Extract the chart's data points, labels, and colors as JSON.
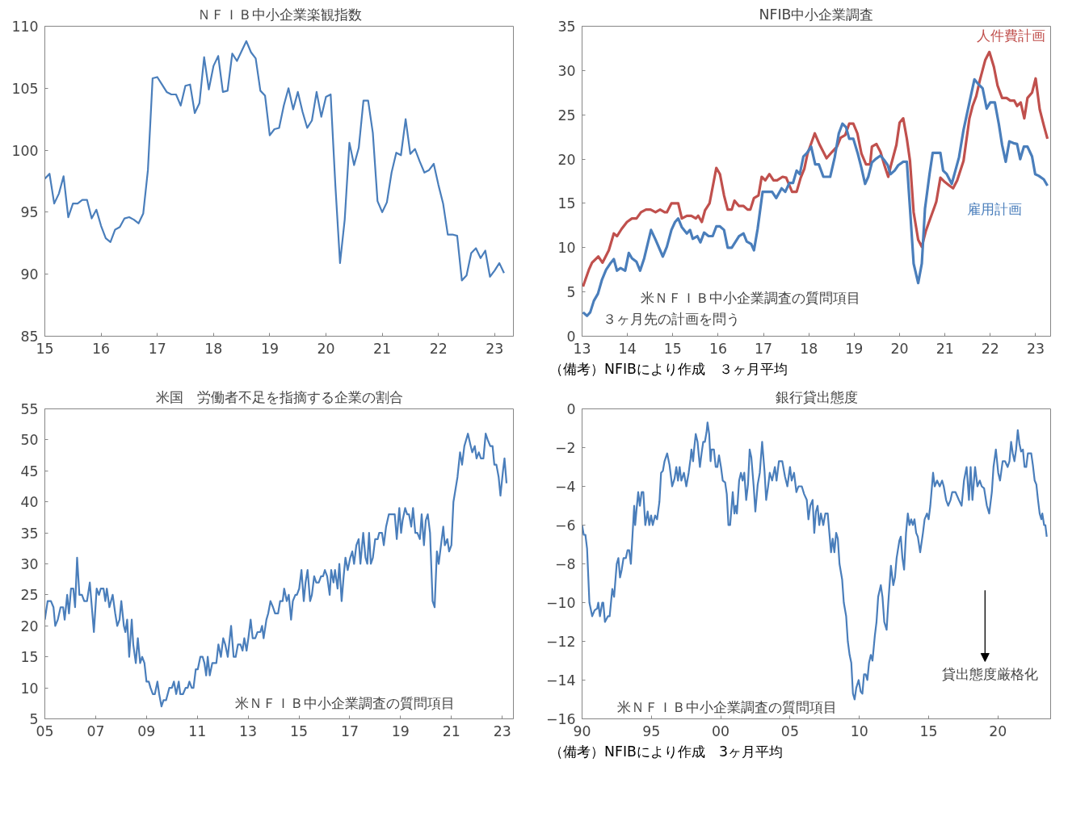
{
  "chart_data": [
    {
      "type": "line",
      "title": "ＮＦＩＢ中小企業楽観指数",
      "xlim": [
        "2015-01",
        "2023-05"
      ],
      "ylim": [
        85,
        110
      ],
      "xticks": [
        {
          "value": "2015-01",
          "label": "15"
        },
        {
          "value": "2016-01",
          "label": "16"
        },
        {
          "value": "2017-01",
          "label": "17"
        },
        {
          "value": "2018-01",
          "label": "18"
        },
        {
          "value": "2019-01",
          "label": "19"
        },
        {
          "value": "2020-01",
          "label": "20"
        },
        {
          "value": "2021-01",
          "label": "21"
        },
        {
          "value": "2022-01",
          "label": "22"
        },
        {
          "value": "2023-01",
          "label": "23"
        }
      ],
      "yticks": [
        85,
        90,
        95,
        100,
        105,
        110
      ],
      "x": [
        "2015-01",
        "2015-02",
        "2015-03",
        "2015-04",
        "2015-05",
        "2015-06",
        "2015-07",
        "2015-08",
        "2015-09",
        "2015-10",
        "2015-11",
        "2015-12",
        "2016-01",
        "2016-02",
        "2016-03",
        "2016-04",
        "2016-05",
        "2016-06",
        "2016-07",
        "2016-08",
        "2016-09",
        "2016-10",
        "2016-11",
        "2016-12",
        "2017-01",
        "2017-02",
        "2017-03",
        "2017-04",
        "2017-05",
        "2017-06",
        "2017-07",
        "2017-08",
        "2017-09",
        "2017-10",
        "2017-11",
        "2017-12",
        "2018-01",
        "2018-02",
        "2018-03",
        "2018-04",
        "2018-05",
        "2018-06",
        "2018-07",
        "2018-08",
        "2018-09",
        "2018-10",
        "2018-11",
        "2018-12",
        "2019-01",
        "2019-02",
        "2019-03",
        "2019-04",
        "2019-05",
        "2019-06",
        "2019-07",
        "2019-08",
        "2019-09",
        "2019-10",
        "2019-11",
        "2019-12",
        "2020-01",
        "2020-02",
        "2020-03",
        "2020-04",
        "2020-05",
        "2020-06",
        "2020-07",
        "2020-08",
        "2020-09",
        "2020-10",
        "2020-11",
        "2020-12",
        "2021-01",
        "2021-02",
        "2021-03",
        "2021-04",
        "2021-05",
        "2021-06",
        "2021-07",
        "2021-08",
        "2021-09",
        "2021-10",
        "2021-11",
        "2021-12",
        "2022-01",
        "2022-02",
        "2022-03",
        "2022-04",
        "2022-05",
        "2022-06",
        "2022-07",
        "2022-08",
        "2022-09",
        "2022-10",
        "2022-11",
        "2022-12",
        "2023-01",
        "2023-02",
        "2023-03"
      ],
      "series": [
        {
          "color": "#4a7ebb",
          "values": [
            97.7,
            98.1,
            95.7,
            96.5,
            97.9,
            94.6,
            95.7,
            95.7,
            96.0,
            96.0,
            94.5,
            95.2,
            93.9,
            92.9,
            92.6,
            93.6,
            93.8,
            94.5,
            94.6,
            94.4,
            94.1,
            94.9,
            98.4,
            105.8,
            105.9,
            105.3,
            104.7,
            104.5,
            104.5,
            103.6,
            105.2,
            105.3,
            103.0,
            103.8,
            107.5,
            104.9,
            106.8,
            107.6,
            104.7,
            104.8,
            107.8,
            107.2,
            108.0,
            108.8,
            107.9,
            107.4,
            104.8,
            104.4,
            101.2,
            101.7,
            101.8,
            103.6,
            105.0,
            103.3,
            104.7,
            103.1,
            101.8,
            102.4,
            104.7,
            102.7,
            104.3,
            104.5,
            97.2,
            90.9,
            94.4,
            100.6,
            98.8,
            100.2,
            104.0,
            104.0,
            101.4,
            95.9,
            95.0,
            95.8,
            98.2,
            99.8,
            99.6,
            102.5,
            99.7,
            100.1,
            99.1,
            98.2,
            98.4,
            98.9,
            97.2,
            95.7,
            93.2,
            93.2,
            93.1,
            89.5,
            89.9,
            91.7,
            92.1,
            91.3,
            91.9,
            89.8,
            90.3,
            90.9,
            90.1
          ]
        }
      ]
    },
    {
      "type": "line",
      "title": "NFIB中小企業調査",
      "xlim": [
        2013,
        2023.33
      ],
      "ylim": [
        0,
        35
      ],
      "xticks": [
        {
          "value": 2013,
          "label": "13"
        },
        {
          "value": 2014,
          "label": "14"
        },
        {
          "value": 2015,
          "label": "15"
        },
        {
          "value": 2016,
          "label": "16"
        },
        {
          "value": 2017,
          "label": "17"
        },
        {
          "value": 2018,
          "label": "18"
        },
        {
          "value": 2019,
          "label": "19"
        },
        {
          "value": 2020,
          "label": "20"
        },
        {
          "value": 2021,
          "label": "21"
        },
        {
          "value": 2022,
          "label": "22"
        },
        {
          "value": 2023,
          "label": "23"
        }
      ],
      "yticks": [
        0,
        5,
        10,
        15,
        20,
        25,
        30,
        35
      ],
      "annotations": [
        "米ＮＦＩＢ中小企業調査の質問項目",
        "３ヶ月先の計画を問う",
        "（備考）NFIBにより作成　３ヶ月平均"
      ],
      "series": [
        {
          "name": "人件費計画",
          "color": "#c0504d",
          "x": [
            2013.02,
            2013.15,
            2013.22,
            2013.36,
            2013.45,
            2013.59,
            2013.7,
            2013.77,
            2013.87,
            2013.99,
            2014.1,
            2014.2,
            2014.3,
            2014.41,
            2014.51,
            2014.62,
            2014.72,
            2014.82,
            2014.87,
            2014.97,
            2015.12,
            2015.2,
            2015.31,
            2015.41,
            2015.51,
            2015.56,
            2015.64,
            2015.71,
            2015.81,
            2015.96,
            2016.04,
            2016.13,
            2016.21,
            2016.3,
            2016.36,
            2016.46,
            2016.56,
            2016.65,
            2016.71,
            2016.79,
            2016.89,
            2016.96,
            2017.04,
            2017.13,
            2017.22,
            2017.3,
            2017.42,
            2017.5,
            2017.63,
            2017.73,
            2017.82,
            2017.9,
            2017.97,
            2018.13,
            2018.24,
            2018.39,
            2018.51,
            2018.62,
            2018.7,
            2018.8,
            2018.89,
            2018.98,
            2019.07,
            2019.16,
            2019.26,
            2019.35,
            2019.39,
            2019.49,
            2019.58,
            2019.66,
            2019.75,
            2019.81,
            2019.93,
            2020.0,
            2020.08,
            2020.16,
            2020.23,
            2020.31,
            2020.41,
            2020.49,
            2020.58,
            2020.67,
            2020.77,
            2020.81,
            2020.9,
            2021.0,
            2021.1,
            2021.18,
            2021.27,
            2021.41,
            2021.54,
            2021.61,
            2021.69,
            2021.77,
            2021.89,
            2021.98,
            2022.08,
            2022.16,
            2022.26,
            2022.36,
            2022.44,
            2022.53,
            2022.59,
            2022.67,
            2022.75,
            2022.82,
            2022.92,
            2023.0,
            2023.09,
            2023.18,
            2023.26
          ],
          "values": [
            5.6,
            7.5,
            8.3,
            9.0,
            8.3,
            9.7,
            11.6,
            11.3,
            12.1,
            12.9,
            13.3,
            13.3,
            14.0,
            14.3,
            14.3,
            14.0,
            14.3,
            14.0,
            14.0,
            15.0,
            15.0,
            13.3,
            13.6,
            13.6,
            13.3,
            13.6,
            12.9,
            14.2,
            15.0,
            19.0,
            18.3,
            15.9,
            14.3,
            14.3,
            15.3,
            14.7,
            14.7,
            14.3,
            14.3,
            15.6,
            15.9,
            18.0,
            17.6,
            18.3,
            17.6,
            17.6,
            18.0,
            17.9,
            16.3,
            16.3,
            17.9,
            18.9,
            20.6,
            22.9,
            21.6,
            20.1,
            20.8,
            21.4,
            22.4,
            22.7,
            24.0,
            24.0,
            22.9,
            20.6,
            19.4,
            19.4,
            21.4,
            21.7,
            20.8,
            19.4,
            18.0,
            19.3,
            21.6,
            24.1,
            24.6,
            22.3,
            19.8,
            14.0,
            10.9,
            10.1,
            11.9,
            13.2,
            14.6,
            15.2,
            17.9,
            17.4,
            17.0,
            16.7,
            17.6,
            19.8,
            24.6,
            26.0,
            27.1,
            28.9,
            31.2,
            32.1,
            30.4,
            28.3,
            26.9,
            26.9,
            26.6,
            26.6,
            26.0,
            26.4,
            24.6,
            26.9,
            27.5,
            29.1,
            25.6,
            23.8,
            22.3
          ]
        },
        {
          "name": "雇用計画",
          "color": "#4a7ebb",
          "x": [
            2013.02,
            2013.11,
            2013.18,
            2013.26,
            2013.35,
            2013.44,
            2013.53,
            2013.62,
            2013.7,
            2013.77,
            2013.85,
            2013.95,
            2014.03,
            2014.1,
            2014.2,
            2014.28,
            2014.37,
            2014.52,
            2014.62,
            2014.78,
            2014.87,
            2014.97,
            2015.05,
            2015.12,
            2015.2,
            2015.31,
            2015.38,
            2015.44,
            2015.54,
            2015.61,
            2015.69,
            2015.79,
            2015.88,
            2015.96,
            2016.04,
            2016.13,
            2016.21,
            2016.3,
            2016.46,
            2016.56,
            2016.63,
            2016.73,
            2016.79,
            2016.87,
            2016.98,
            2017.05,
            2017.19,
            2017.28,
            2017.4,
            2017.48,
            2017.57,
            2017.65,
            2017.73,
            2017.8,
            2017.88,
            2017.96,
            2018.05,
            2018.14,
            2018.22,
            2018.32,
            2018.47,
            2018.57,
            2018.66,
            2018.74,
            2018.82,
            2018.89,
            2018.98,
            2019.08,
            2019.16,
            2019.24,
            2019.31,
            2019.39,
            2019.47,
            2019.58,
            2019.66,
            2019.74,
            2019.8,
            2019.89,
            2019.97,
            2020.08,
            2020.16,
            2020.23,
            2020.31,
            2020.41,
            2020.49,
            2020.56,
            2020.66,
            2020.73,
            2020.81,
            2020.9,
            2020.96,
            2021.04,
            2021.15,
            2021.23,
            2021.31,
            2021.41,
            2021.54,
            2021.65,
            2021.73,
            2021.83,
            2021.92,
            2022.0,
            2022.1,
            2022.19,
            2022.26,
            2022.34,
            2022.42,
            2022.51,
            2022.59,
            2022.66,
            2022.74,
            2022.82,
            2022.92,
            2022.99,
            2023.07,
            2023.18,
            2023.26
          ],
          "values": [
            2.7,
            2.3,
            2.7,
            4.0,
            4.8,
            6.4,
            7.5,
            8.2,
            8.7,
            7.4,
            7.7,
            7.4,
            9.4,
            8.8,
            8.4,
            7.4,
            8.8,
            12.0,
            10.9,
            9.0,
            10.1,
            12.0,
            12.9,
            13.3,
            12.3,
            11.6,
            12.0,
            11.0,
            11.3,
            10.6,
            11.7,
            11.3,
            11.3,
            12.4,
            12.4,
            12.0,
            10.0,
            10.0,
            11.3,
            11.6,
            10.7,
            10.4,
            9.7,
            12.1,
            16.3,
            16.3,
            16.3,
            15.6,
            16.7,
            16.3,
            17.3,
            17.3,
            18.7,
            18.3,
            20.3,
            20.7,
            21.4,
            19.4,
            19.4,
            18.0,
            18.0,
            20.2,
            22.9,
            24.0,
            23.6,
            22.3,
            22.3,
            20.6,
            19.0,
            17.2,
            18.0,
            19.6,
            20.0,
            20.4,
            19.9,
            19.3,
            18.3,
            18.7,
            19.3,
            19.7,
            19.7,
            14.4,
            8.2,
            6.0,
            8.2,
            14.4,
            18.3,
            20.7,
            20.7,
            20.7,
            18.7,
            18.3,
            17.2,
            18.7,
            20.2,
            23.3,
            26.4,
            29.0,
            28.5,
            28.0,
            25.7,
            26.4,
            26.4,
            23.9,
            21.6,
            19.7,
            22.0,
            21.8,
            21.7,
            20.0,
            21.4,
            21.4,
            20.3,
            18.3,
            18.1,
            17.7,
            17.0
          ]
        }
      ]
    },
    {
      "type": "line",
      "title": "米国　労働者不足を指摘する企業の割合",
      "xlim": [
        2005,
        2023.44
      ],
      "ylim": [
        5,
        55
      ],
      "xticks": [
        {
          "value": 2005,
          "label": "05"
        },
        {
          "value": 2007,
          "label": "07"
        },
        {
          "value": 2009,
          "label": "09"
        },
        {
          "value": 2011,
          "label": "11"
        },
        {
          "value": 2013,
          "label": "13"
        },
        {
          "value": 2015,
          "label": "15"
        },
        {
          "value": 2017,
          "label": "17"
        },
        {
          "value": 2019,
          "label": "19"
        },
        {
          "value": 2021,
          "label": "21"
        },
        {
          "value": 2023,
          "label": "23"
        }
      ],
      "yticks": [
        5,
        10,
        15,
        20,
        25,
        30,
        35,
        40,
        45,
        50,
        55
      ],
      "annotations": [
        "米ＮＦＩＢ中小企業調査の質問項目"
      ],
      "series": [
        {
          "color": "#4a7ebb",
          "x": [
            2005.0,
            2005.11,
            2005.24,
            2005.34,
            2005.41,
            2005.51,
            2005.62,
            2005.72,
            2005.78,
            2005.88,
            2005.95,
            2006.03,
            2006.12,
            2006.19,
            2006.27,
            2006.36,
            2006.46,
            2006.55,
            2006.66,
            2006.77,
            2006.93,
            2007.04,
            2007.13,
            2007.2,
            2007.31,
            2007.38,
            2007.44,
            2007.54,
            2007.67,
            2007.77,
            2007.85,
            2007.94,
            2008.01,
            2008.11,
            2008.17,
            2008.24,
            2008.32,
            2008.42,
            2008.48,
            2008.58,
            2008.66,
            2008.75,
            2008.83,
            2008.92,
            2009.0,
            2009.09,
            2009.16,
            2009.25,
            2009.33,
            2009.43,
            2009.5,
            2009.59,
            2009.67,
            2009.77,
            2009.9,
            2010.0,
            2010.08,
            2010.17,
            2010.27,
            2010.33,
            2010.44,
            2010.54,
            2010.62,
            2010.69,
            2010.78,
            2010.85,
            2010.94,
            2011.02,
            2011.12,
            2011.21,
            2011.28,
            2011.35,
            2011.41,
            2011.49,
            2011.59,
            2011.75,
            2011.83,
            2011.93,
            2012.02,
            2012.1,
            2012.2,
            2012.33,
            2012.43,
            2012.51,
            2012.6,
            2012.7,
            2012.78,
            2012.85,
            2012.94,
            2013.01,
            2013.1,
            2013.18,
            2013.28,
            2013.37,
            2013.48,
            2013.55,
            2013.61,
            2013.72,
            2013.79,
            2013.88,
            2013.98,
            2014.06,
            2014.18,
            2014.26,
            2014.36,
            2014.42,
            2014.52,
            2014.6,
            2014.69,
            2014.76,
            2014.86,
            2014.92,
            2015.01,
            2015.1,
            2015.19,
            2015.26,
            2015.34,
            2015.44,
            2015.51,
            2015.6,
            2015.68,
            2015.78,
            2015.87,
            2015.95,
            2016.02,
            2016.11,
            2016.21,
            2016.27,
            2016.36,
            2016.42,
            2016.52,
            2016.59,
            2016.68,
            2016.76,
            2016.83,
            2016.92,
            2017.02,
            2017.1,
            2017.17,
            2017.26,
            2017.35,
            2017.42,
            2017.53,
            2017.62,
            2017.69,
            2017.76,
            2017.83,
            2017.91,
            2018.0,
            2018.1,
            2018.16,
            2018.27,
            2018.34,
            2018.43,
            2018.54,
            2018.65,
            2018.77,
            2018.85,
            2018.95,
            2019.02,
            2019.08,
            2019.18,
            2019.26,
            2019.33,
            2019.42,
            2019.49,
            2019.58,
            2019.66,
            2019.76,
            2019.83,
            2019.92,
            2019.99,
            2020.07,
            2020.16,
            2020.26,
            2020.34,
            2020.43,
            2020.5,
            2020.59,
            2020.68,
            2020.74,
            2020.84,
            2020.91,
            2021.0,
            2021.08,
            2021.24,
            2021.34,
            2021.42,
            2021.51,
            2021.65,
            2021.76,
            2021.82,
            2021.92,
            2021.99,
            2022.08,
            2022.16,
            2022.26,
            2022.35,
            2022.43,
            2022.53,
            2022.62,
            2022.69,
            2022.77,
            2022.86,
            2022.93,
            2023.03,
            2023.09,
            2023.17
          ],
          "values": [
            21,
            24,
            24,
            23,
            20,
            21,
            23,
            23,
            21,
            25,
            22,
            26,
            26,
            23,
            31,
            25,
            25,
            24,
            24,
            27,
            19,
            26,
            25,
            26,
            26,
            24,
            26,
            23,
            25,
            22,
            20,
            21,
            24,
            20,
            19,
            21,
            15,
            21,
            17,
            14,
            18,
            14,
            15,
            14,
            11,
            11,
            10,
            9,
            9,
            11,
            9,
            7,
            8,
            8,
            10,
            10,
            11,
            9,
            11,
            9,
            9,
            10,
            10,
            11,
            10,
            10,
            13,
            13,
            15,
            15,
            14,
            12,
            15,
            12,
            14,
            14,
            17,
            15,
            18,
            17,
            15,
            20,
            15,
            15,
            17,
            17,
            16,
            18,
            16,
            18,
            21,
            18,
            18,
            19,
            19,
            20,
            18,
            21,
            22,
            24,
            23,
            22,
            22,
            24,
            24,
            26,
            24,
            25,
            21,
            24,
            25,
            25,
            26,
            29,
            24,
            27,
            29,
            24,
            25,
            28,
            27,
            27,
            28,
            28,
            29,
            28,
            25,
            29,
            27,
            29,
            26,
            30,
            24,
            28,
            31,
            29,
            31,
            32,
            30,
            33,
            34,
            30,
            35,
            31,
            30,
            35,
            30,
            31,
            34,
            34,
            35,
            35,
            33,
            36,
            38,
            38,
            38,
            34,
            39,
            35,
            37,
            39,
            38,
            38,
            36,
            39,
            35,
            35,
            34,
            38,
            33,
            37,
            38,
            35,
            24,
            23,
            32,
            30,
            33,
            36,
            33,
            34,
            32,
            33,
            40,
            44,
            48,
            46,
            49,
            51,
            49,
            48,
            49,
            47,
            48,
            47,
            47,
            51,
            50,
            49,
            49,
            46,
            46,
            44,
            41,
            45,
            47,
            43
          ]
        }
      ]
    },
    {
      "type": "line",
      "title": "銀行貸出態度",
      "xlim": [
        1990,
        2023.8
      ],
      "ylim": [
        -16,
        0
      ],
      "xticks": [
        {
          "value": 1990,
          "label": "90"
        },
        {
          "value": 1995,
          "label": "95"
        },
        {
          "value": 2000,
          "label": "00"
        },
        {
          "value": 2005,
          "label": "05"
        },
        {
          "value": 2010,
          "label": "10"
        },
        {
          "value": 2015,
          "label": "15"
        },
        {
          "value": 2020,
          "label": "20"
        }
      ],
      "yticks": [
        -16,
        -14,
        -12,
        -10,
        -8,
        -6,
        -4,
        -2,
        0
      ],
      "annotations": [
        "米ＮＦＩＢ中小企業調査の質問項目",
        "貸出態度厳格化",
        "（備考）NFIBにより作成　3ヶ月平均"
      ],
      "series": [
        {
          "color": "#4a7ebb",
          "x": [
            1990.0,
            1990.12,
            1990.24,
            1990.36,
            1990.53,
            1990.73,
            1990.9,
            1991.09,
            1991.17,
            1991.29,
            1991.46,
            1991.53,
            1991.65,
            1991.87,
            1991.99,
            1992.18,
            1992.31,
            1992.5,
            1992.62,
            1992.74,
            1992.86,
            1992.99,
            1993.16,
            1993.28,
            1993.4,
            1993.52,
            1993.64,
            1993.76,
            1993.83,
            1993.93,
            1994.05,
            1994.17,
            1994.3,
            1994.42,
            1994.56,
            1994.73,
            1994.85,
            1994.98,
            1995.1,
            1995.27,
            1995.41,
            1995.58,
            1995.7,
            1995.83,
            1995.95,
            1996.14,
            1996.31,
            1996.5,
            1996.67,
            1996.8,
            1996.92,
            1997.04,
            1997.16,
            1997.35,
            1997.52,
            1997.69,
            1997.82,
            1997.89,
            1998.01,
            1998.08,
            1998.2,
            1998.33,
            1998.5,
            1998.62,
            1998.74,
            1998.86,
            1998.98,
            1999.05,
            1999.17,
            1999.27,
            1999.34,
            1999.51,
            1999.64,
            1999.76,
            1999.88,
            2000.02,
            2000.15,
            2000.32,
            2000.44,
            2000.56,
            2000.68,
            2000.87,
            2000.99,
            2001.09,
            2001.17,
            2001.33,
            2001.46,
            2001.58,
            2001.7,
            2001.84,
            2001.97,
            2002.09,
            2002.21,
            2002.38,
            2002.5,
            2002.67,
            2002.82,
            2002.99,
            2003.16,
            2003.28,
            2003.42,
            2003.54,
            2003.71,
            2003.91,
            2004.03,
            2004.2,
            2004.44,
            2004.64,
            2004.81,
            2005.0,
            2005.12,
            2005.29,
            2005.46,
            2005.61,
            2005.85,
            2006.02,
            2006.21,
            2006.33,
            2006.46,
            2006.63,
            2006.75,
            2006.87,
            2006.99,
            2007.11,
            2007.23,
            2007.4,
            2007.55,
            2007.72,
            2007.84,
            2007.96,
            2008.08,
            2008.2,
            2008.33,
            2008.45,
            2008.57,
            2008.76,
            2008.88,
            2009.05,
            2009.17,
            2009.3,
            2009.42,
            2009.54,
            2009.66,
            2009.78,
            2009.95,
            2010.1,
            2010.22,
            2010.34,
            2010.46,
            2010.58,
            2010.7,
            2010.83,
            2010.95,
            2011.12,
            2011.24,
            2011.36,
            2011.55,
            2011.67,
            2011.8,
            2011.97,
            2012.09,
            2012.28,
            2012.45,
            2012.57,
            2012.69,
            2012.89,
            2012.99,
            2013.11,
            2013.23,
            2013.37,
            2013.5,
            2013.62,
            2013.74,
            2013.86,
            2013.98,
            2014.1,
            2014.22,
            2014.39,
            2014.59,
            2014.71,
            2014.88,
            2015.0,
            2015.12,
            2015.24,
            2015.32,
            2015.44,
            2015.61,
            2015.8,
            2015.97,
            2016.09,
            2016.26,
            2016.41,
            2016.58,
            2016.7,
            2016.94,
            2017.18,
            2017.38,
            2017.55,
            2017.74,
            2017.91,
            2018.03,
            2018.16,
            2018.35,
            2018.52,
            2018.69,
            2018.83,
            2019.0,
            2019.2,
            2019.37,
            2019.56,
            2019.68,
            2019.85,
            2020.02,
            2020.15,
            2020.34,
            2020.51,
            2020.7,
            2020.83,
            2020.95,
            2021.07,
            2021.19,
            2021.31,
            2021.43,
            2021.55,
            2021.67,
            2021.8,
            2021.92,
            2022.04,
            2022.16,
            2022.28,
            2022.4,
            2022.52,
            2022.65,
            2022.77,
            2022.89,
            2023.01,
            2023.13,
            2023.2,
            2023.33,
            2023.42,
            2023.52
          ],
          "values": [
            -6.0,
            -6.5,
            -6.5,
            -7.2,
            -10.0,
            -10.7,
            -10.4,
            -10.3,
            -10.0,
            -10.7,
            -10.0,
            -10.0,
            -11.0,
            -10.7,
            -10.7,
            -9.3,
            -9.7,
            -8.0,
            -7.7,
            -8.7,
            -8.3,
            -7.7,
            -7.7,
            -7.3,
            -7.3,
            -8.0,
            -6.5,
            -5.0,
            -6.0,
            -5.2,
            -4.3,
            -5.0,
            -4.3,
            -4.3,
            -6.0,
            -5.3,
            -6.0,
            -5.5,
            -6.0,
            -5.5,
            -5.7,
            -4.8,
            -3.3,
            -3.2,
            -2.7,
            -2.3,
            -2.9,
            -4.0,
            -3.6,
            -3.0,
            -3.7,
            -3.0,
            -3.7,
            -3.3,
            -4.0,
            -3.3,
            -2.6,
            -2.1,
            -2.7,
            -2.1,
            -1.3,
            -1.7,
            -3.0,
            -2.3,
            -1.7,
            -1.7,
            -1.2,
            -0.7,
            -1.3,
            -2.7,
            -2.1,
            -2.1,
            -3.0,
            -3.0,
            -2.4,
            -3.0,
            -3.7,
            -3.8,
            -4.4,
            -6.0,
            -6.0,
            -4.3,
            -5.4,
            -5.0,
            -5.4,
            -3.7,
            -3.3,
            -3.7,
            -3.3,
            -4.7,
            -3.9,
            -2.1,
            -2.5,
            -4.0,
            -5.3,
            -3.9,
            -3.3,
            -1.7,
            -3.2,
            -4.7,
            -4.0,
            -3.3,
            -3.7,
            -3.0,
            -3.7,
            -2.7,
            -2.7,
            -3.5,
            -4.0,
            -3.0,
            -3.7,
            -3.3,
            -4.3,
            -4.0,
            -4.0,
            -4.4,
            -4.7,
            -5.7,
            -5.0,
            -4.7,
            -6.4,
            -5.3,
            -5.0,
            -6.0,
            -5.4,
            -6.0,
            -5.4,
            -5.4,
            -6.4,
            -7.4,
            -6.7,
            -7.4,
            -6.4,
            -6.7,
            -8.0,
            -8.8,
            -10.0,
            -10.7,
            -12.0,
            -12.7,
            -13.1,
            -14.7,
            -15.0,
            -14.4,
            -14.0,
            -14.6,
            -14.7,
            -13.7,
            -13.7,
            -14.0,
            -13.1,
            -12.7,
            -13.0,
            -11.7,
            -11.0,
            -9.7,
            -9.1,
            -9.7,
            -11.0,
            -11.4,
            -10.0,
            -8.1,
            -9.1,
            -8.7,
            -7.7,
            -6.8,
            -6.6,
            -7.7,
            -8.3,
            -6.4,
            -5.4,
            -6.0,
            -5.7,
            -6.0,
            -5.7,
            -6.4,
            -6.6,
            -7.4,
            -6.4,
            -5.7,
            -5.4,
            -5.7,
            -5.0,
            -4.0,
            -3.3,
            -4.0,
            -3.7,
            -4.0,
            -3.7,
            -4.0,
            -4.7,
            -5.0,
            -4.7,
            -4.3,
            -4.3,
            -4.7,
            -5.0,
            -3.7,
            -3.0,
            -4.7,
            -3.0,
            -4.7,
            -3.0,
            -4.0,
            -3.7,
            -4.0,
            -4.1,
            -5.0,
            -5.4,
            -4.3,
            -3.0,
            -2.1,
            -3.3,
            -3.7,
            -2.7,
            -2.7,
            -3.0,
            -2.7,
            -1.7,
            -2.3,
            -2.7,
            -2.1,
            -1.1,
            -1.8,
            -2.2,
            -2.1,
            -3.0,
            -3.0,
            -2.3,
            -2.3,
            -2.3,
            -2.9,
            -3.7,
            -3.9,
            -4.7,
            -5.4,
            -5.7,
            -5.4,
            -6.0,
            -6.0,
            -6.6
          ]
        }
      ]
    }
  ]
}
